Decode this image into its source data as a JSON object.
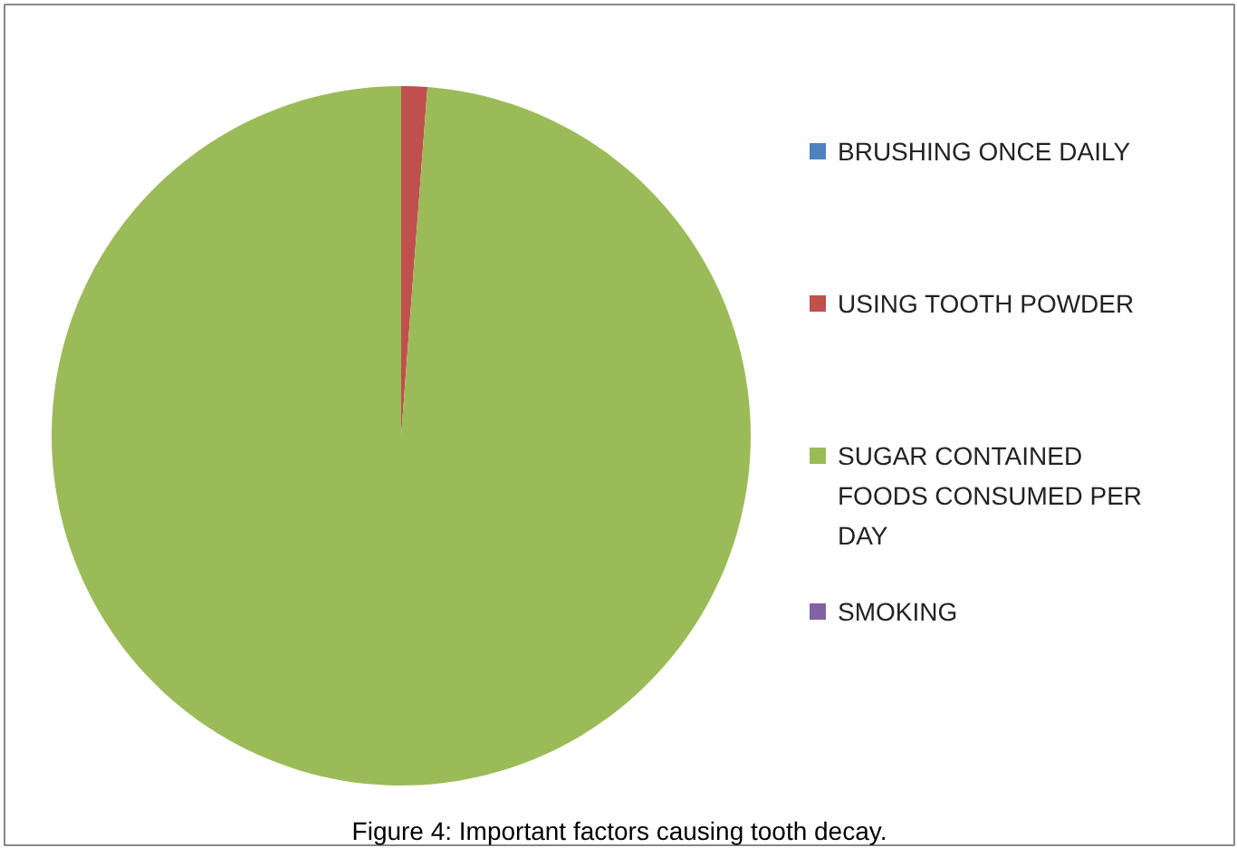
{
  "chart_data": {
    "type": "pie",
    "title": "Figure 4: Important factors causing tooth decay.",
    "categories": [
      "BRUSHING ONCE DAILY",
      "USING TOOTH POWDER",
      "SUGAR CONTAINED FOODS CONSUMED PER DAY",
      "SMOKING"
    ],
    "values": [
      0,
      1.2,
      98.8,
      0
    ],
    "colors": [
      "#4f81bd",
      "#c0504d",
      "#9bbb59",
      "#8064a2"
    ],
    "legend": "right"
  }
}
